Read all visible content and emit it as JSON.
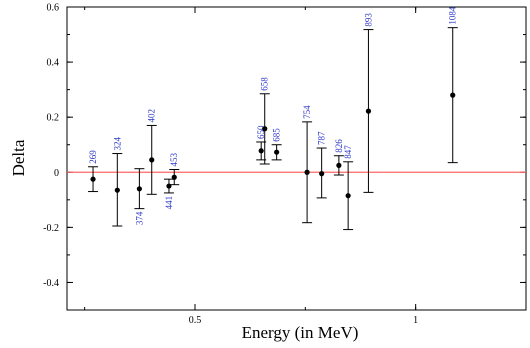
{
  "chart_data": {
    "type": "scatter",
    "xlabel": "Energy (in MeV)",
    "ylabel": "Delta",
    "xlim": [
      0.21,
      1.25
    ],
    "ylim": [
      -0.5,
      0.6
    ],
    "x_ticks": [
      0.5,
      1
    ],
    "x_tick_labels": [
      "0.5",
      "1"
    ],
    "y_ticks": [
      0.6,
      0.4,
      0.2,
      0,
      -0.2,
      -0.4
    ],
    "y_tick_labels": [
      "0.6",
      "0.4",
      "0.2",
      "0",
      "-0.2",
      "-0.4"
    ],
    "reference_line": {
      "y": 0,
      "color": "#ff6666"
    },
    "marker_color": "#000000",
    "label_color": "#2a35c9",
    "series": [
      {
        "points": [
          {
            "label": "269",
            "x": 0.269,
            "y": -0.025,
            "y_low": -0.07,
            "y_high": 0.02
          },
          {
            "label": "324",
            "x": 0.324,
            "y": -0.065,
            "y_low": -0.195,
            "y_high": 0.068
          },
          {
            "label": "374",
            "x": 0.374,
            "y": -0.06,
            "y_low": -0.132,
            "y_high": 0.013
          },
          {
            "label": "402",
            "x": 0.402,
            "y": 0.045,
            "y_low": -0.08,
            "y_high": 0.17
          },
          {
            "label": "441",
            "x": 0.441,
            "y": -0.05,
            "y_low": -0.075,
            "y_high": -0.025
          },
          {
            "label": "453",
            "x": 0.453,
            "y": -0.018,
            "y_low": -0.045,
            "y_high": 0.01
          },
          {
            "label": "650",
            "x": 0.65,
            "y": 0.078,
            "y_low": 0.045,
            "y_high": 0.11
          },
          {
            "label": "658",
            "x": 0.658,
            "y": 0.158,
            "y_low": 0.03,
            "y_high": 0.285
          },
          {
            "label": "685",
            "x": 0.685,
            "y": 0.073,
            "y_low": 0.045,
            "y_high": 0.1
          },
          {
            "label": "754",
            "x": 0.754,
            "y": 0.0,
            "y_low": -0.183,
            "y_high": 0.183
          },
          {
            "label": "787",
            "x": 0.787,
            "y": -0.005,
            "y_low": -0.093,
            "y_high": 0.088
          },
          {
            "label": "826",
            "x": 0.826,
            "y": 0.025,
            "y_low": -0.01,
            "y_high": 0.06
          },
          {
            "label": "847",
            "x": 0.847,
            "y": -0.085,
            "y_low": -0.208,
            "y_high": 0.038
          },
          {
            "label": "893",
            "x": 0.893,
            "y": 0.222,
            "y_low": -0.073,
            "y_high": 0.518
          },
          {
            "label": "1084",
            "x": 1.084,
            "y": 0.28,
            "y_low": 0.035,
            "y_high": 0.525
          }
        ]
      }
    ]
  }
}
